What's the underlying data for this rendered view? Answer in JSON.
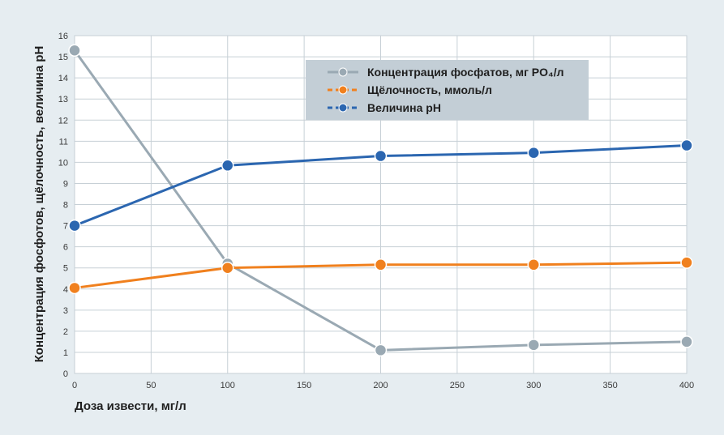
{
  "chart_data": {
    "type": "line",
    "xlabel": "Доза извести, мг/л",
    "ylabel": "Концентрация фосфотов, щёлочность, величина pH",
    "xlim": [
      0,
      400
    ],
    "ylim": [
      0,
      16
    ],
    "xticks": [
      0,
      50,
      100,
      150,
      200,
      250,
      300,
      350,
      400
    ],
    "yticks": [
      0,
      1,
      2,
      3,
      4,
      5,
      6,
      7,
      8,
      9,
      10,
      11,
      12,
      13,
      14,
      15,
      16
    ],
    "grid": true,
    "legend_position": "top-right",
    "series": [
      {
        "name": "Концентрация фосфатов, мг PO₄/л",
        "color": "#9aa9b3",
        "x": [
          0,
          100,
          200,
          300,
          400
        ],
        "y": [
          15.3,
          5.2,
          1.1,
          1.35,
          1.5
        ]
      },
      {
        "name": "Щёлочность, ммоль/л",
        "color": "#f0801e",
        "x": [
          0,
          100,
          200,
          300,
          400
        ],
        "y": [
          4.05,
          5.0,
          5.15,
          5.15,
          5.25
        ]
      },
      {
        "name": "Величина pH",
        "color": "#2b66b0",
        "x": [
          0,
          100,
          200,
          300,
          400
        ],
        "y": [
          7.0,
          9.85,
          10.3,
          10.45,
          10.8
        ]
      }
    ]
  }
}
